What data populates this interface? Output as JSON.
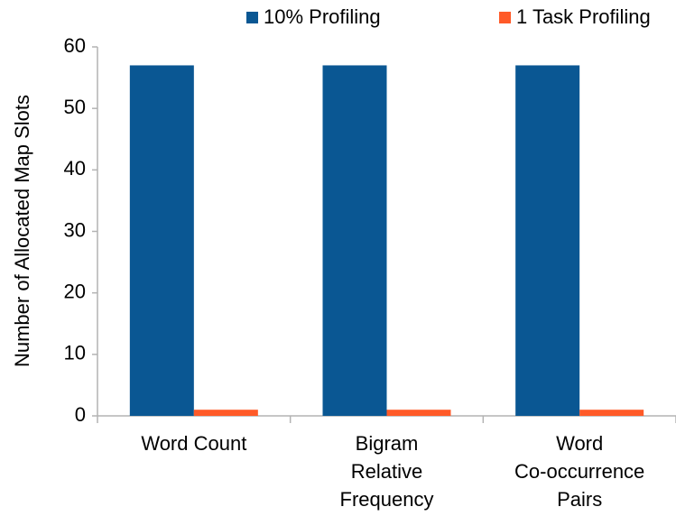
{
  "chart_data": {
    "type": "bar",
    "y_label": "Number of Allocated Map Slots",
    "categories": [
      [
        "Word Count"
      ],
      [
        "Bigram",
        "Relative",
        "Frequency"
      ],
      [
        "Word",
        "Co-occurrence",
        "Pairs"
      ]
    ],
    "series": [
      {
        "name": "10% Profiling",
        "color": "#0a5793",
        "values": [
          57,
          57,
          57
        ]
      },
      {
        "name": "1 Task Profiling",
        "color": "#ff5a28",
        "values": [
          1,
          1,
          1
        ]
      }
    ],
    "ylim": [
      0,
      60
    ],
    "yticks": [
      0,
      10,
      20,
      30,
      40,
      50,
      60
    ],
    "grid": false,
    "legend": "top"
  }
}
